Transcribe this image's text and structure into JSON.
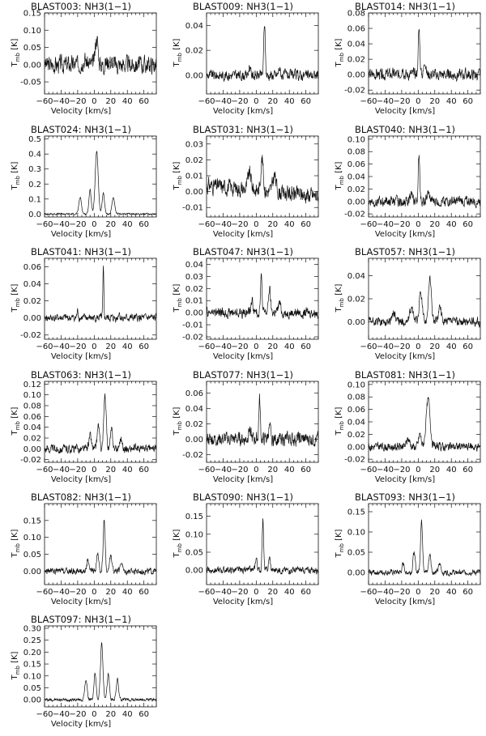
{
  "chart_data": [
    {
      "type": "line",
      "title": "BLAST003: NH3(1−1)",
      "xlabel": "Velocity [km/s]",
      "ylabel": "T",
      "ylabel_sub": "mb",
      "ylabel_unit": "[K]",
      "xlim": [
        -60,
        75
      ],
      "ylim": [
        -0.085,
        0.15
      ],
      "xticks": [
        -60,
        -40,
        -20,
        0,
        20,
        40,
        60
      ],
      "yticks": [
        -0.05,
        0.0,
        0.05,
        0.1,
        0.15
      ],
      "ytick_labels": [
        "-0.05",
        "0.00",
        "0.05",
        "0.10",
        "0.15"
      ],
      "noise": 0.028,
      "seed": 3,
      "peaks": [
        {
          "v": 3,
          "amp": 0.08,
          "w": 1.6
        },
        {
          "v": -12,
          "amp": 0.015,
          "w": 3
        },
        {
          "v": 18,
          "amp": 0.012,
          "w": 3
        }
      ]
    },
    {
      "type": "line",
      "title": "BLAST009: NH3(1−1)",
      "xlabel": "Velocity [km/s]",
      "ylabel": "T",
      "ylabel_sub": "mb",
      "ylabel_unit": "[K]",
      "xlim": [
        -60,
        75
      ],
      "ylim": [
        -0.015,
        0.05
      ],
      "xticks": [
        -60,
        -40,
        -20,
        0,
        20,
        40,
        60
      ],
      "yticks": [
        0.0,
        0.02,
        0.04
      ],
      "ytick_labels": [
        "0.00",
        "0.02",
        "0.04"
      ],
      "noise": 0.0045,
      "seed": 9,
      "peaks": [
        {
          "v": 10,
          "amp": 0.042,
          "w": 0.9
        },
        {
          "v": -8,
          "amp": 0.008,
          "w": 1
        },
        {
          "v": 28,
          "amp": 0.006,
          "w": 1
        }
      ]
    },
    {
      "type": "line",
      "title": "BLAST014: NH3(1−1)",
      "xlabel": "Velocity [km/s]",
      "ylabel": "T",
      "ylabel_sub": "mb",
      "ylabel_unit": "[K]",
      "xlim": [
        -60,
        75
      ],
      "ylim": [
        -0.025,
        0.08
      ],
      "xticks": [
        -60,
        -40,
        -20,
        0,
        20,
        40,
        60
      ],
      "yticks": [
        -0.02,
        0.0,
        0.02,
        0.04,
        0.06,
        0.08
      ],
      "ytick_labels": [
        "-0.02",
        "0.00",
        "0.02",
        "0.04",
        "0.06",
        "0.08"
      ],
      "noise": 0.008,
      "seed": 14,
      "peaks": [
        {
          "v": 1,
          "amp": 0.058,
          "w": 1
        },
        {
          "v": -19,
          "amp": 0.01,
          "w": 1.2
        },
        {
          "v": 8,
          "amp": 0.02,
          "w": 1
        }
      ]
    },
    {
      "type": "line",
      "title": "BLAST024: NH3(1−1)",
      "xlabel": "Velocity [km/s]",
      "ylabel": "T",
      "ylabel_sub": "mb",
      "ylabel_unit": "[K]",
      "xlim": [
        -60,
        75
      ],
      "ylim": [
        -0.02,
        0.52
      ],
      "xticks": [
        -60,
        -40,
        -20,
        0,
        20,
        40,
        60
      ],
      "yticks": [
        0.0,
        0.1,
        0.2,
        0.3,
        0.4,
        0.5
      ],
      "ytick_labels": [
        "0.0",
        "0.1",
        "0.2",
        "0.3",
        "0.4",
        "0.5"
      ],
      "noise": 0.006,
      "seed": 24,
      "peaks": [
        {
          "v": 3,
          "amp": 0.42,
          "w": 1.8
        },
        {
          "v": -5,
          "amp": 0.16,
          "w": 1.4
        },
        {
          "v": 11,
          "amp": 0.14,
          "w": 1.4
        },
        {
          "v": -17,
          "amp": 0.11,
          "w": 1.6
        },
        {
          "v": 23,
          "amp": 0.11,
          "w": 1.6
        }
      ]
    },
    {
      "type": "line",
      "title": "BLAST031: NH3(1−1)",
      "xlabel": "Velocity [km/s]",
      "ylabel": "T",
      "ylabel_sub": "mb",
      "ylabel_unit": "[K]",
      "xlim": [
        -60,
        75
      ],
      "ylim": [
        -0.016,
        0.035
      ],
      "xticks": [
        -60,
        -40,
        -20,
        0,
        20,
        40,
        60
      ],
      "yticks": [
        -0.01,
        0.0,
        0.01,
        0.02,
        0.03
      ],
      "ytick_labels": [
        "-0.01",
        "0.00",
        "0.01",
        "0.02",
        "0.03"
      ],
      "noise": 0.0055,
      "seed": 31,
      "peaks": [
        {
          "v": 7,
          "amp": 0.02,
          "w": 1.5
        },
        {
          "v": -8,
          "amp": 0.01,
          "w": 2
        },
        {
          "v": 22,
          "amp": 0.01,
          "w": 2
        }
      ],
      "baseline_slope": -5e-05
    },
    {
      "type": "line",
      "title": "BLAST040: NH3(1−1)",
      "xlabel": "Velocity [km/s]",
      "ylabel": "T",
      "ylabel_sub": "mb",
      "ylabel_unit": "[K]",
      "xlim": [
        -60,
        75
      ],
      "ylim": [
        -0.025,
        0.105
      ],
      "xticks": [
        -60,
        -40,
        -20,
        0,
        20,
        40,
        60
      ],
      "yticks": [
        -0.02,
        0.0,
        0.02,
        0.04,
        0.06,
        0.08,
        0.1
      ],
      "ytick_labels": [
        "-0.02",
        "0.00",
        "0.02",
        "0.04",
        "0.06",
        "0.08",
        "0.10"
      ],
      "noise": 0.009,
      "seed": 40,
      "peaks": [
        {
          "v": 1,
          "amp": 0.075,
          "w": 0.9
        },
        {
          "v": -9,
          "amp": 0.012,
          "w": 1.5
        },
        {
          "v": 12,
          "amp": 0.012,
          "w": 1.5
        }
      ]
    },
    {
      "type": "line",
      "title": "BLAST041: NH3(1−1)",
      "xlabel": "Velocity [km/s]",
      "ylabel": "T",
      "ylabel_sub": "mb",
      "ylabel_unit": "[K]",
      "xlim": [
        -60,
        75
      ],
      "ylim": [
        -0.025,
        0.07
      ],
      "xticks": [
        -60,
        -40,
        -20,
        0,
        20,
        40,
        60
      ],
      "yticks": [
        -0.02,
        0.0,
        0.02,
        0.04,
        0.06
      ],
      "ytick_labels": [
        "-0.02",
        "0.00",
        "0.02",
        "0.04",
        "0.06"
      ],
      "noise": 0.005,
      "seed": 41,
      "peaks": [
        {
          "v": 11,
          "amp": 0.056,
          "w": 0.6
        },
        {
          "v": -20,
          "amp": 0.008,
          "w": 0.8
        },
        {
          "v": 30,
          "amp": 0.007,
          "w": 0.8
        }
      ]
    },
    {
      "type": "line",
      "title": "BLAST047: NH3(1−1)",
      "xlabel": "Velocity [km/s]",
      "ylabel": "T",
      "ylabel_sub": "mb",
      "ylabel_unit": "[K]",
      "xlim": [
        -60,
        75
      ],
      "ylim": [
        -0.022,
        0.045
      ],
      "xticks": [
        -60,
        -40,
        -20,
        0,
        20,
        40,
        60
      ],
      "yticks": [
        -0.02,
        -0.01,
        0.0,
        0.01,
        0.02,
        0.03,
        0.04
      ],
      "ytick_labels": [
        "-0.02",
        "-0.01",
        "0.00",
        "0.01",
        "0.02",
        "0.03",
        "0.04"
      ],
      "noise": 0.0045,
      "seed": 47,
      "peaks": [
        {
          "v": 6,
          "amp": 0.03,
          "w": 1
        },
        {
          "v": 16,
          "amp": 0.02,
          "w": 1.2
        },
        {
          "v": -5,
          "amp": 0.01,
          "w": 1.2
        },
        {
          "v": 28,
          "amp": 0.008,
          "w": 1.4
        }
      ]
    },
    {
      "type": "line",
      "title": "BLAST057: NH3(1−1)",
      "xlabel": "Velocity [km/s]",
      "ylabel": "T",
      "ylabel_sub": "mb",
      "ylabel_unit": "[K]",
      "xlim": [
        -60,
        75
      ],
      "ylim": [
        -0.015,
        0.055
      ],
      "xticks": [
        -60,
        -40,
        -20,
        0,
        20,
        40,
        60
      ],
      "yticks": [
        0.0,
        0.02,
        0.04
      ],
      "ytick_labels": [
        "0.00",
        "0.02",
        "0.04"
      ],
      "noise": 0.0042,
      "seed": 57,
      "peaks": [
        {
          "v": 14,
          "amp": 0.037,
          "w": 1.8
        },
        {
          "v": 3,
          "amp": 0.025,
          "w": 1.8
        },
        {
          "v": -8,
          "amp": 0.012,
          "w": 2
        },
        {
          "v": 26,
          "amp": 0.012,
          "w": 2
        },
        {
          "v": -30,
          "amp": 0.008,
          "w": 2.2
        }
      ]
    },
    {
      "type": "line",
      "title": "BLAST063: NH3(1−1)",
      "xlabel": "Velocity [km/s]",
      "ylabel": "T",
      "ylabel_sub": "mb",
      "ylabel_unit": "[K]",
      "xlim": [
        -60,
        75
      ],
      "ylim": [
        -0.025,
        0.125
      ],
      "xticks": [
        -60,
        -40,
        -20,
        0,
        20,
        40,
        60
      ],
      "yticks": [
        -0.02,
        0.0,
        0.02,
        0.04,
        0.06,
        0.08,
        0.1,
        0.12
      ],
      "ytick_labels": [
        "-0.02",
        "0.00",
        "0.02",
        "0.04",
        "0.06",
        "0.08",
        "0.10",
        "0.12"
      ],
      "noise": 0.0085,
      "seed": 63,
      "peaks": [
        {
          "v": 13,
          "amp": 0.095,
          "w": 1.5
        },
        {
          "v": 5,
          "amp": 0.045,
          "w": 1.3
        },
        {
          "v": 21,
          "amp": 0.035,
          "w": 1.3
        },
        {
          "v": -5,
          "amp": 0.025,
          "w": 1.5
        },
        {
          "v": 32,
          "amp": 0.02,
          "w": 1.5
        }
      ]
    },
    {
      "type": "line",
      "title": "BLAST077: NH3(1−1)",
      "xlabel": "Velocity [km/s]",
      "ylabel": "T",
      "ylabel_sub": "mb",
      "ylabel_unit": "[K]",
      "xlim": [
        -60,
        75
      ],
      "ylim": [
        -0.03,
        0.075
      ],
      "xticks": [
        -60,
        -40,
        -20,
        0,
        20,
        40,
        60
      ],
      "yticks": [
        -0.02,
        0.0,
        0.02,
        0.04,
        0.06
      ],
      "ytick_labels": [
        "-0.02",
        "0.00",
        "0.02",
        "0.04",
        "0.06"
      ],
      "noise": 0.0095,
      "seed": 77,
      "peaks": [
        {
          "v": 4,
          "amp": 0.052,
          "w": 0.9
        },
        {
          "v": -8,
          "amp": 0.014,
          "w": 1.4
        },
        {
          "v": 16,
          "amp": 0.014,
          "w": 1.4
        }
      ]
    },
    {
      "type": "line",
      "title": "BLAST081: NH3(1−1)",
      "xlabel": "Velocity [km/s]",
      "ylabel": "T",
      "ylabel_sub": "mb",
      "ylabel_unit": "[K]",
      "xlim": [
        -60,
        75
      ],
      "ylim": [
        -0.025,
        0.105
      ],
      "xticks": [
        -60,
        -40,
        -20,
        0,
        20,
        40,
        60
      ],
      "yticks": [
        -0.02,
        0.0,
        0.02,
        0.04,
        0.06,
        0.08,
        0.1
      ],
      "ytick_labels": [
        "-0.02",
        "0.00",
        "0.02",
        "0.04",
        "0.06",
        "0.08",
        "0.10"
      ],
      "noise": 0.0075,
      "seed": 81,
      "peaks": [
        {
          "v": 12,
          "amp": 0.075,
          "w": 2.4
        },
        {
          "v": 2,
          "amp": 0.02,
          "w": 1.5
        },
        {
          "v": -12,
          "amp": 0.012,
          "w": 2
        }
      ]
    },
    {
      "type": "line",
      "title": "BLAST082: NH3(1−1)",
      "xlabel": "Velocity [km/s]",
      "ylabel": "T",
      "ylabel_sub": "mb",
      "ylabel_unit": "[K]",
      "xlim": [
        -60,
        75
      ],
      "ylim": [
        -0.04,
        0.2
      ],
      "xticks": [
        -60,
        -40,
        -20,
        0,
        20,
        40,
        60
      ],
      "yticks": [
        0.0,
        0.05,
        0.1,
        0.15
      ],
      "ytick_labels": [
        "0.00",
        "0.05",
        "0.10",
        "0.15"
      ],
      "noise": 0.01,
      "seed": 82,
      "peaks": [
        {
          "v": 12,
          "amp": 0.15,
          "w": 1.2
        },
        {
          "v": 4,
          "amp": 0.05,
          "w": 1.2
        },
        {
          "v": 20,
          "amp": 0.05,
          "w": 1.2
        },
        {
          "v": -8,
          "amp": 0.03,
          "w": 1.2
        },
        {
          "v": 33,
          "amp": 0.03,
          "w": 1.2
        }
      ]
    },
    {
      "type": "line",
      "title": "BLAST090: NH3(1−1)",
      "xlabel": "Velocity [km/s]",
      "ylabel": "T",
      "ylabel_sub": "mb",
      "ylabel_unit": "[K]",
      "xlim": [
        -60,
        75
      ],
      "ylim": [
        -0.04,
        0.185
      ],
      "xticks": [
        -60,
        -40,
        -20,
        0,
        20,
        40,
        60
      ],
      "yticks": [
        0.0,
        0.05,
        0.1,
        0.15
      ],
      "ytick_labels": [
        "0.00",
        "0.05",
        "0.10",
        "0.15"
      ],
      "noise": 0.01,
      "seed": 90,
      "peaks": [
        {
          "v": 8,
          "amp": 0.14,
          "w": 0.9
        },
        {
          "v": 0,
          "amp": 0.035,
          "w": 1
        },
        {
          "v": 16,
          "amp": 0.035,
          "w": 1
        }
      ]
    },
    {
      "type": "line",
      "title": "BLAST093: NH3(1−1)",
      "xlabel": "Velocity [km/s]",
      "ylabel": "T",
      "ylabel_sub": "mb",
      "ylabel_unit": "[K]",
      "xlim": [
        -60,
        75
      ],
      "ylim": [
        -0.03,
        0.17
      ],
      "xticks": [
        -60,
        -40,
        -20,
        0,
        20,
        40,
        60
      ],
      "yticks": [
        0.0,
        0.05,
        0.1,
        0.15
      ],
      "ytick_labels": [
        "0.00",
        "0.05",
        "0.10",
        "0.15"
      ],
      "noise": 0.0075,
      "seed": 93,
      "peaks": [
        {
          "v": 4,
          "amp": 0.125,
          "w": 1.3
        },
        {
          "v": -5,
          "amp": 0.05,
          "w": 1.3
        },
        {
          "v": 14,
          "amp": 0.045,
          "w": 1.3
        },
        {
          "v": -18,
          "amp": 0.02,
          "w": 1.4
        },
        {
          "v": 26,
          "amp": 0.02,
          "w": 1.4
        }
      ]
    },
    {
      "type": "line",
      "title": "BLAST097: NH3(1−1)",
      "xlabel": "Velocity [km/s]",
      "ylabel": "T",
      "ylabel_sub": "mb",
      "ylabel_unit": "[K]",
      "xlim": [
        -60,
        75
      ],
      "ylim": [
        -0.03,
        0.31
      ],
      "xticks": [
        -60,
        -40,
        -20,
        0,
        20,
        40,
        60
      ],
      "yticks": [
        0.0,
        0.05,
        0.1,
        0.15,
        0.2,
        0.25,
        0.3
      ],
      "ytick_labels": [
        "0.00",
        "0.05",
        "0.10",
        "0.15",
        "0.20",
        "0.25",
        "0.30"
      ],
      "noise": 0.007,
      "seed": 97,
      "peaks": [
        {
          "v": 9,
          "amp": 0.235,
          "w": 1.5
        },
        {
          "v": 1,
          "amp": 0.11,
          "w": 1.3
        },
        {
          "v": 17,
          "amp": 0.11,
          "w": 1.3
        },
        {
          "v": -10,
          "amp": 0.085,
          "w": 1.4
        },
        {
          "v": 28,
          "amp": 0.085,
          "w": 1.4
        }
      ]
    }
  ]
}
